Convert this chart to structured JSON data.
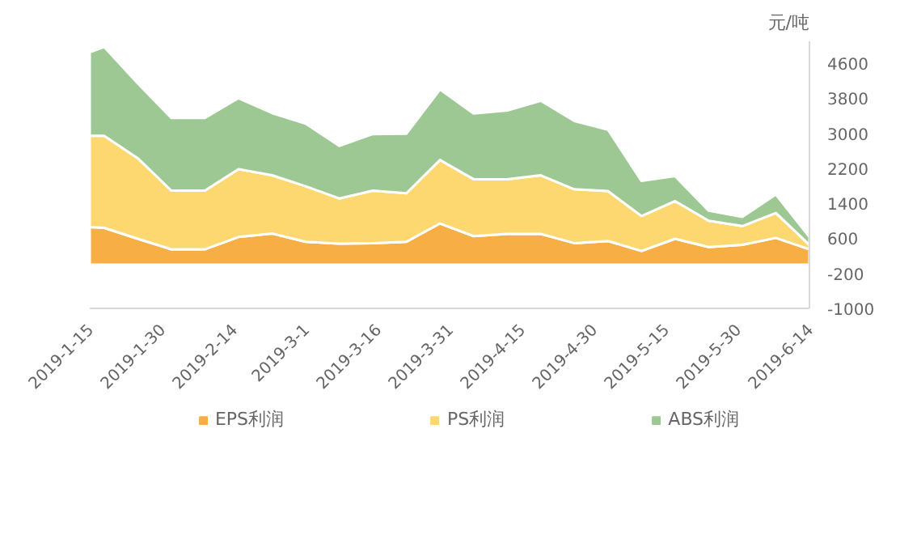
{
  "chart_data": {
    "type": "area",
    "stacked": true,
    "ylabel": "元/吨",
    "x": [
      "2019-01-15",
      "2019-01-18",
      "2019-01-25",
      "2019-02-01",
      "2019-02-08",
      "2019-02-15",
      "2019-02-22",
      "2019-03-01",
      "2019-03-08",
      "2019-03-15",
      "2019-03-22",
      "2019-03-29",
      "2019-04-05",
      "2019-04-12",
      "2019-04-19",
      "2019-04-26",
      "2019-05-03",
      "2019-05-10",
      "2019-05-17",
      "2019-05-24",
      "2019-05-31",
      "2019-06-07",
      "2019-06-14"
    ],
    "series": [
      {
        "name": "EPS利润",
        "color": "#f6ae45",
        "values": [
          860,
          840,
          590,
          350,
          350,
          630,
          710,
          520,
          480,
          490,
          520,
          940,
          650,
          700,
          700,
          490,
          540,
          310,
          590,
          400,
          450,
          610,
          350
        ]
      },
      {
        "name": "PS利润",
        "color": "#fdd870",
        "values": [
          2080,
          2100,
          1840,
          1340,
          1340,
          1550,
          1330,
          1270,
          1030,
          1200,
          1110,
          1450,
          1300,
          1250,
          1340,
          1230,
          1140,
          800,
          860,
          600,
          430,
          570,
          100
        ]
      },
      {
        "name": "ABS利润",
        "color": "#9dc893",
        "values": [
          1910,
          2030,
          1710,
          1660,
          1660,
          1620,
          1420,
          1430,
          1200,
          1290,
          1360,
          1610,
          1500,
          1570,
          1700,
          1560,
          1400,
          800,
          570,
          230,
          210,
          420,
          180
        ]
      }
    ],
    "xlim": [
      "2019-01-15",
      "2019-06-14"
    ],
    "xticks": [
      {
        "value": "2019-01-15",
        "label": "2019-1-15"
      },
      {
        "value": "2019-01-30",
        "label": "2019-1-30"
      },
      {
        "value": "2019-02-14",
        "label": "2019-2-14"
      },
      {
        "value": "2019-03-01",
        "label": "2019-3-1"
      },
      {
        "value": "2019-03-16",
        "label": "2019-3-16"
      },
      {
        "value": "2019-03-31",
        "label": "2019-3-31"
      },
      {
        "value": "2019-04-15",
        "label": "2019-4-15"
      },
      {
        "value": "2019-04-30",
        "label": "2019-4-30"
      },
      {
        "value": "2019-05-15",
        "label": "2019-5-15"
      },
      {
        "value": "2019-05-30",
        "label": "2019-5-30"
      },
      {
        "value": "2019-06-14",
        "label": "2019-6-14"
      }
    ],
    "ylim": [
      -1000,
      5100
    ],
    "yticks": [
      -1000,
      -200,
      600,
      1400,
      2200,
      3000,
      3800,
      4600
    ],
    "grid": false,
    "legend": "bottom"
  }
}
